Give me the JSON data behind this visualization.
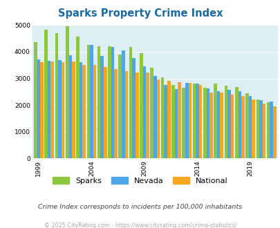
{
  "title": "Sparks Property Crime Index",
  "years": [
    1999,
    2000,
    2001,
    2002,
    2003,
    2004,
    2005,
    2006,
    2007,
    2008,
    2009,
    2010,
    2011,
    2012,
    2013,
    2014,
    2015,
    2016,
    2017,
    2018,
    2019,
    2020,
    2021
  ],
  "sparks": [
    4350,
    4820,
    4700,
    4950,
    4580,
    4250,
    4200,
    4200,
    3890,
    4170,
    3950,
    3400,
    3050,
    2750,
    2650,
    2800,
    2650,
    2800,
    2720,
    2680,
    2450,
    2210,
    2100
  ],
  "nevada": [
    3720,
    3670,
    3680,
    3870,
    3600,
    4250,
    3850,
    4180,
    4050,
    3760,
    3450,
    3090,
    2760,
    2600,
    2830,
    2800,
    2630,
    2530,
    2570,
    2530,
    2340,
    2180,
    2130
  ],
  "national": [
    3610,
    3640,
    3600,
    3630,
    3500,
    3500,
    3440,
    3360,
    3280,
    3220,
    3230,
    2960,
    2910,
    2860,
    2830,
    2750,
    2480,
    2460,
    2390,
    2350,
    2210,
    2050,
    1960
  ],
  "sparks_color": "#8dc63f",
  "nevada_color": "#4da6e8",
  "national_color": "#f5a623",
  "plot_bg": "#ddeef5",
  "title_color": "#1a6aa0",
  "ylim": [
    0,
    5000
  ],
  "yticks": [
    0,
    1000,
    2000,
    3000,
    4000,
    5000
  ],
  "xtick_labels": [
    "1999",
    "2004",
    "2009",
    "2014",
    "2019"
  ],
  "xtick_positions": [
    0,
    5,
    10,
    15,
    20
  ],
  "subtitle": "Crime Index corresponds to incidents per 100,000 inhabitants",
  "footer": "© 2025 CityRating.com - https://www.cityrating.com/crime-statistics/",
  "subtitle_color": "#444444",
  "footer_color": "#aaaaaa"
}
